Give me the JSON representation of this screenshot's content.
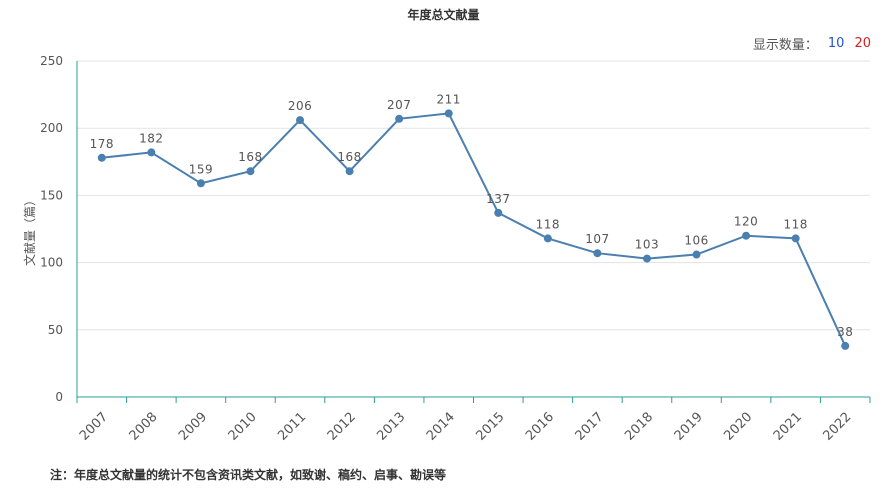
{
  "header": {
    "title": "年度总文献量",
    "display_label": "显示数量：",
    "options": [
      "10",
      "20"
    ]
  },
  "footnote": "注：年度总文献量的统计不包含资讯类文献，如致谢、稿约、启事、勘误等",
  "colors": {
    "line": "#4a7fb0",
    "axis": "#2a9d9d",
    "grid": "#e3e3e3"
  },
  "chart_data": {
    "type": "line",
    "title": "年度总文献量",
    "ylabel": "文献量（篇）",
    "xlabel": "",
    "ylim": [
      0,
      250
    ],
    "yticks": [
      0,
      50,
      100,
      150,
      200,
      250
    ],
    "grid": true,
    "categories": [
      "2007",
      "2008",
      "2009",
      "2010",
      "2011",
      "2012",
      "2013",
      "2014",
      "2015",
      "2016",
      "2017",
      "2018",
      "2019",
      "2020",
      "2021",
      "2022"
    ],
    "series": [
      {
        "values": [
          178,
          182,
          159,
          168,
          206,
          168,
          207,
          211,
          137,
          118,
          107,
          103,
          106,
          120,
          118,
          38
        ]
      }
    ]
  }
}
